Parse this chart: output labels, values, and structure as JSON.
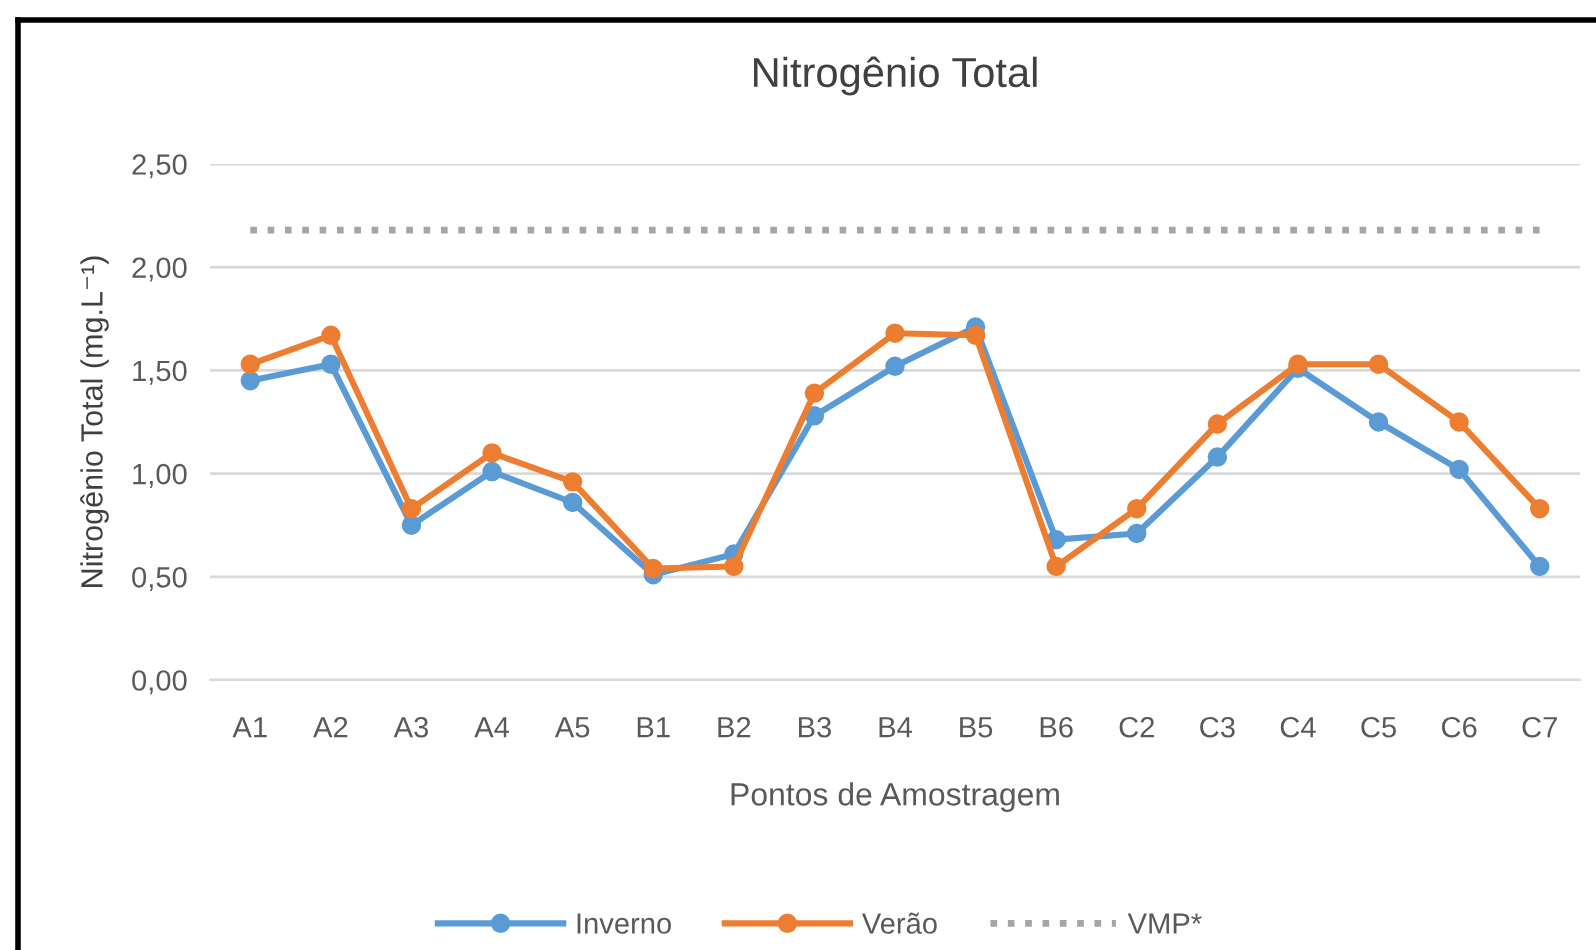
{
  "chart_data": {
    "type": "line",
    "title": "Nitrogênio Total",
    "xlabel": "Pontos de Amostragem",
    "ylabel": "Nitrogênio Total (mg.L⁻¹)",
    "categories": [
      "A1",
      "A2",
      "A3",
      "A4",
      "A5",
      "B1",
      "B2",
      "B3",
      "B4",
      "B5",
      "B6",
      "C2",
      "C3",
      "C4",
      "C5",
      "C6",
      "C7"
    ],
    "series": [
      {
        "name": "Inverno",
        "color": "#5b9bd5",
        "marker": "circle",
        "line_style": "solid",
        "values": [
          1.45,
          1.53,
          0.75,
          1.01,
          0.86,
          0.51,
          0.61,
          1.28,
          1.52,
          1.71,
          0.68,
          0.71,
          1.08,
          1.51,
          1.25,
          1.02,
          0.55
        ]
      },
      {
        "name": "Verão",
        "color": "#ed7d31",
        "marker": "circle",
        "line_style": "solid",
        "values": [
          1.53,
          1.67,
          0.83,
          1.1,
          0.96,
          0.54,
          0.55,
          1.39,
          1.68,
          1.67,
          0.55,
          0.83,
          1.24,
          1.53,
          1.53,
          1.25,
          0.83
        ]
      },
      {
        "name": "VMP*",
        "color": "#a5a5a5",
        "marker": "none",
        "line_style": "dotted",
        "values": [
          2.18,
          2.18,
          2.18,
          2.18,
          2.18,
          2.18,
          2.18,
          2.18,
          2.18,
          2.18,
          2.18,
          2.18,
          2.18,
          2.18,
          2.18,
          2.18,
          2.18
        ]
      }
    ],
    "ylim": [
      0,
      2.5
    ],
    "yticks": [
      {
        "value": 0,
        "label": "0,00"
      },
      {
        "value": 0.5,
        "label": "0,50"
      },
      {
        "value": 1.0,
        "label": "1,00"
      },
      {
        "value": 1.5,
        "label": "1,50"
      },
      {
        "value": 2.0,
        "label": "2,00"
      },
      {
        "value": 2.5,
        "label": "2,50"
      }
    ],
    "grid": "y",
    "legend": "bottom"
  }
}
